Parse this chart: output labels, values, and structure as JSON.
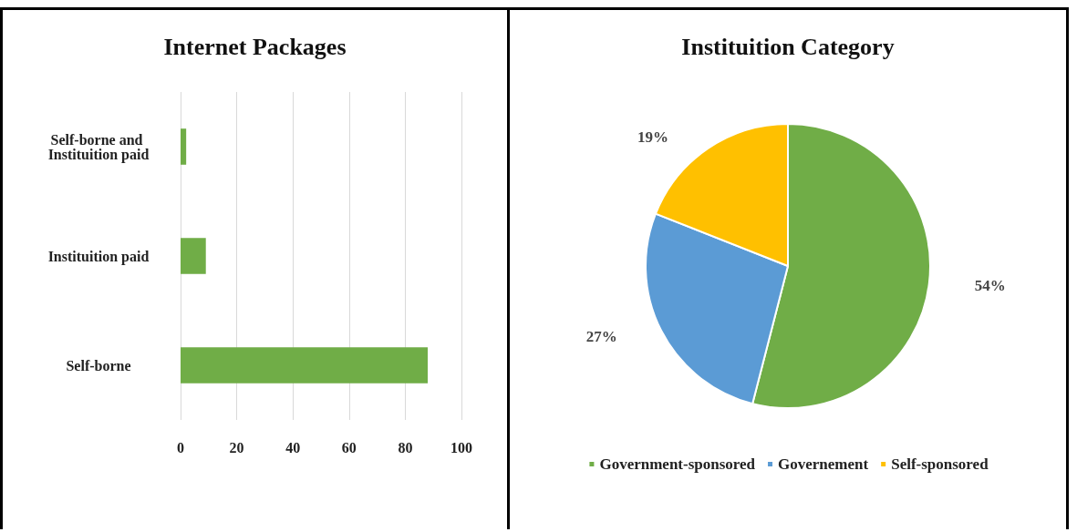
{
  "chart_data": [
    {
      "type": "bar",
      "title": "Internet Packages",
      "orientation": "horizontal",
      "categories": [
        "Self-borne and Instituition paid",
        "Instituition paid",
        "Self-borne"
      ],
      "values": [
        2,
        9,
        88
      ],
      "color": "#70ad47",
      "xlim": [
        0,
        100
      ],
      "xticks": [
        0,
        20,
        40,
        60,
        80,
        100
      ],
      "grid": "x"
    },
    {
      "type": "pie",
      "title": "Instituition Category",
      "categories": [
        "Government-sponsored",
        "Governement",
        "Self-sponsored"
      ],
      "values": [
        54,
        27,
        19
      ],
      "colors": [
        "#70ad47",
        "#5b9bd5",
        "#ffc000"
      ],
      "value_labels": [
        "54%",
        "27%",
        "19%"
      ],
      "legend": "bottom"
    }
  ]
}
